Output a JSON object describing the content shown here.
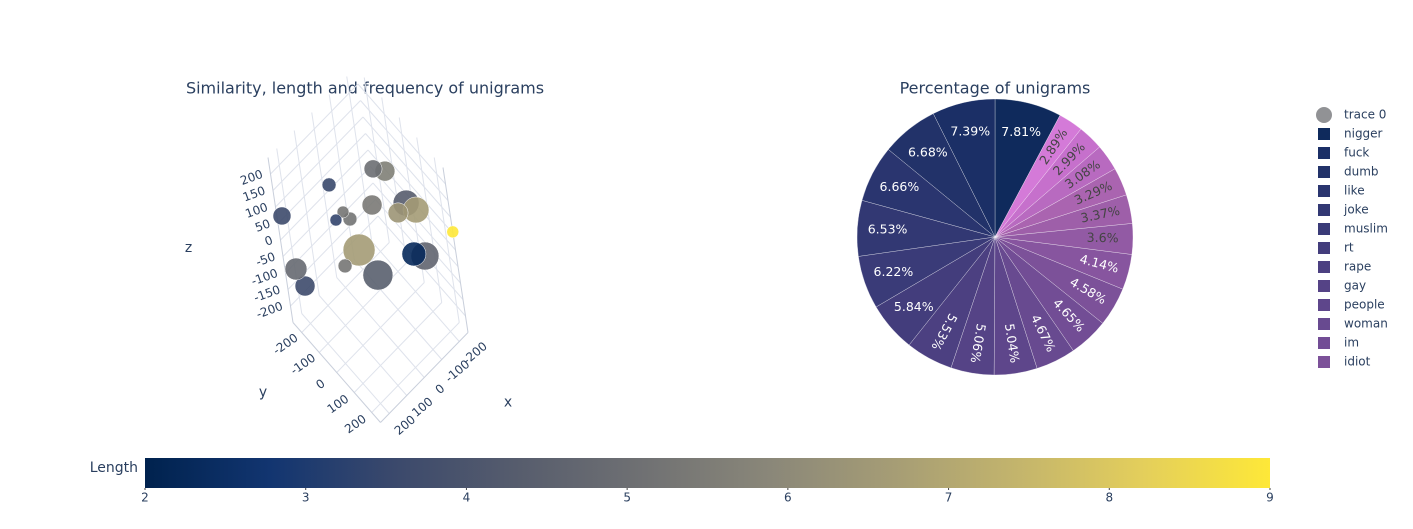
{
  "chart_data": [
    {
      "type": "scatter3d",
      "title": "Similarity, length and frequency of unigrams",
      "xlabel": "x",
      "ylabel": "y",
      "zlabel": "z",
      "xlim": [
        -250,
        250
      ],
      "ylim": [
        -250,
        250
      ],
      "zlim": [
        -250,
        250
      ],
      "xticks": [
        -200,
        -100,
        0,
        100,
        200
      ],
      "yticks": [
        -200,
        -100,
        0,
        100,
        200
      ],
      "zticks": [
        -200,
        -150,
        -100,
        -50,
        0,
        50,
        100,
        150,
        200
      ],
      "series": [
        {
          "name": "trace 0",
          "x": [
            -82,
            -139,
            76,
            -184,
            -192,
            -137,
            -50,
            63,
            34,
            104,
            239,
            -250,
            48,
            -113,
            -166,
            129,
            45,
            231,
            199
          ],
          "y": [
            0,
            0,
            -100,
            50,
            100,
            50,
            0,
            -50,
            -50,
            -50,
            -230,
            250,
            0,
            150,
            150,
            0,
            100,
            -200,
            -200
          ],
          "z": [
            186,
            148,
            163,
            57,
            62,
            53,
            94,
            104,
            67,
            102,
            79,
            55,
            11,
            2,
            -33,
            7,
            -6,
            -68,
            -137
          ],
          "sizes": [
            18,
            20,
            14,
            26,
            26,
            20,
            20,
            12,
            14,
            12,
            18,
            12,
            32,
            24,
            28,
            14,
            30,
            22,
            20
          ],
          "colors": [
            5,
            5.6,
            3.5,
            4.3,
            6.6,
            6.4,
            5.4,
            5.3,
            5.2,
            3.4,
            3.6,
            9,
            6.6,
            2.3,
            4.6,
            5.3,
            4.4,
            4.8,
            3.6
          ]
        }
      ],
      "colorbar": {
        "title": "Length",
        "lim": [
          2,
          9
        ],
        "ticks": [
          2,
          3,
          4,
          5,
          6,
          7,
          8,
          9
        ],
        "colorscale": [
          "#00224e",
          "#123570",
          "#3b496c",
          "#575d6d",
          "#707173",
          "#8a8779",
          "#a69d75",
          "#c4b56c",
          "#e4cf5b",
          "#fee838"
        ]
      }
    },
    {
      "type": "pie",
      "title": "Percentage of unigrams",
      "categories": [
        "nigger",
        "fuck",
        "dumb",
        "like",
        "joke",
        "muslim",
        "rt",
        "rape",
        "gay",
        "people",
        "woman",
        "im",
        "idiot",
        null,
        null,
        null,
        null,
        null,
        null,
        null
      ],
      "values": [
        7.81,
        7.39,
        6.68,
        6.66,
        6.53,
        6.22,
        5.84,
        5.53,
        5.06,
        5.04,
        4.67,
        4.65,
        4.58,
        4.14,
        3.6,
        3.37,
        3.29,
        3.08,
        2.99,
        2.89
      ],
      "value_labels": [
        "7.81%",
        "7.39%",
        "6.68%",
        "6.66%",
        "6.53%",
        "6.22%",
        "5.84%",
        "5.53%",
        "5.06%",
        "5.04%",
        "4.67%",
        "4.65%",
        "4.58%",
        "4.14%",
        "3.6%",
        "3.37%",
        "3.29%",
        "3.08%",
        "2.99%",
        "2.89%"
      ],
      "colors": [
        "#0f2a5c",
        "#1b2f66",
        "#223269",
        "#2a356f",
        "#323873",
        "#3a3b78",
        "#433d7c",
        "#4c4081",
        "#554386",
        "#5e468b",
        "#684a90",
        "#724d95",
        "#7c5199",
        "#87559f",
        "#925aa4",
        "#9e5fa9",
        "#aa64b0",
        "#b86ac0",
        "#c670cc",
        "#d47ad8"
      ]
    }
  ]
}
